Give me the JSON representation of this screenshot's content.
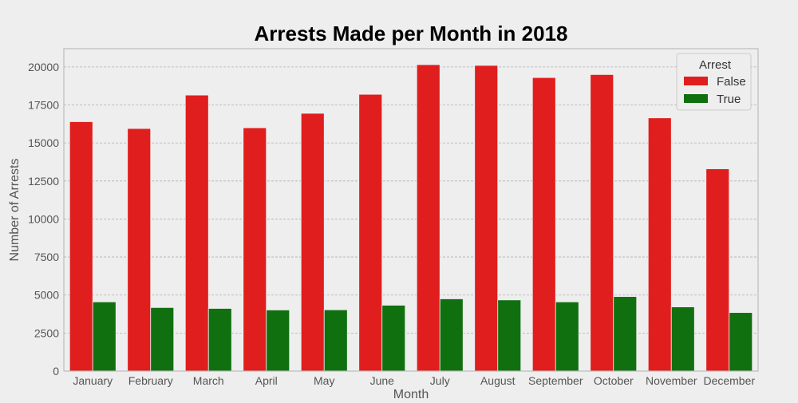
{
  "chart_data": {
    "type": "bar",
    "title": "Arrests Made per Month in 2018",
    "xlabel": "Month",
    "ylabel": "Number of Arrests",
    "categories": [
      "January",
      "February",
      "March",
      "April",
      "May",
      "June",
      "July",
      "August",
      "September",
      "October",
      "November",
      "December"
    ],
    "series": [
      {
        "name": "False",
        "color": "#e01e1e",
        "values": [
          16400,
          15950,
          18150,
          16000,
          16950,
          18200,
          20150,
          20100,
          19300,
          19500,
          16650,
          13300
        ]
      },
      {
        "name": "True",
        "color": "#107010",
        "values": [
          4550,
          4180,
          4120,
          4020,
          4030,
          4330,
          4750,
          4680,
          4550,
          4900,
          4220,
          3850
        ]
      }
    ],
    "ylim": [
      0,
      21200
    ],
    "yticks": [
      0,
      2500,
      5000,
      7500,
      10000,
      12500,
      15000,
      17500,
      20000
    ],
    "ytick_labels": [
      "0",
      "2500",
      "5000",
      "7500",
      "10000",
      "12500",
      "15000",
      "17500",
      "20000"
    ],
    "legend": {
      "title": "Arrest",
      "position": "top-right"
    },
    "grid": true,
    "colors": {
      "background": "#eeeeee",
      "plot_background": "#eeeeee",
      "grid": "#b0b0b0",
      "axis": "#bcbcbc",
      "text": "#555555",
      "title": "#000000"
    }
  }
}
